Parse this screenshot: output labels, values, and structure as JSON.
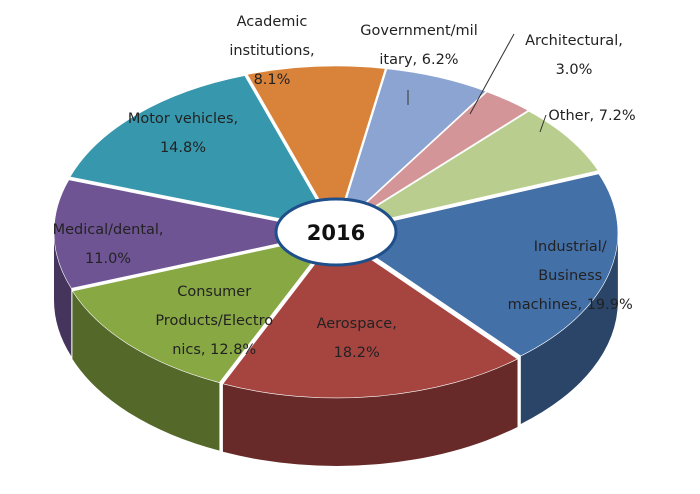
{
  "chart_data": {
    "type": "pie",
    "title": "2016",
    "categories": [
      "Industrial/Business machines",
      "Aerospace",
      "Consumer Products/Electronics",
      "Medical/dental",
      "Motor vehicles",
      "Academic institutions",
      "Government/military",
      "Architectural",
      "Other"
    ],
    "values": [
      19.9,
      18.2,
      12.8,
      11.0,
      14.8,
      8.1,
      6.2,
      3.0,
      7.2
    ],
    "unit": "%",
    "colors": [
      "#4470a8",
      "#a64440",
      "#88a844",
      "#6f5494",
      "#3798ad",
      "#d9833a",
      "#8ba4d2",
      "#d49598",
      "#b9ce8e"
    ],
    "labels": [
      [
        "Industrial/",
        "Business",
        "machines, 19.9%"
      ],
      [
        "Aerospace,",
        "18.2%"
      ],
      [
        "Consumer",
        "Products/Electro",
        "nics, 12.8%"
      ],
      [
        "Medical/dental,",
        "11.0%"
      ],
      [
        "Motor vehicles,",
        "14.8%"
      ],
      [
        "Academic",
        "institutions,",
        "8.1%"
      ],
      [
        "Government/mil",
        "itary, 6.2%"
      ],
      [
        "Architectural,",
        "3.0%"
      ],
      [
        "Other, 7.2%"
      ]
    ]
  }
}
